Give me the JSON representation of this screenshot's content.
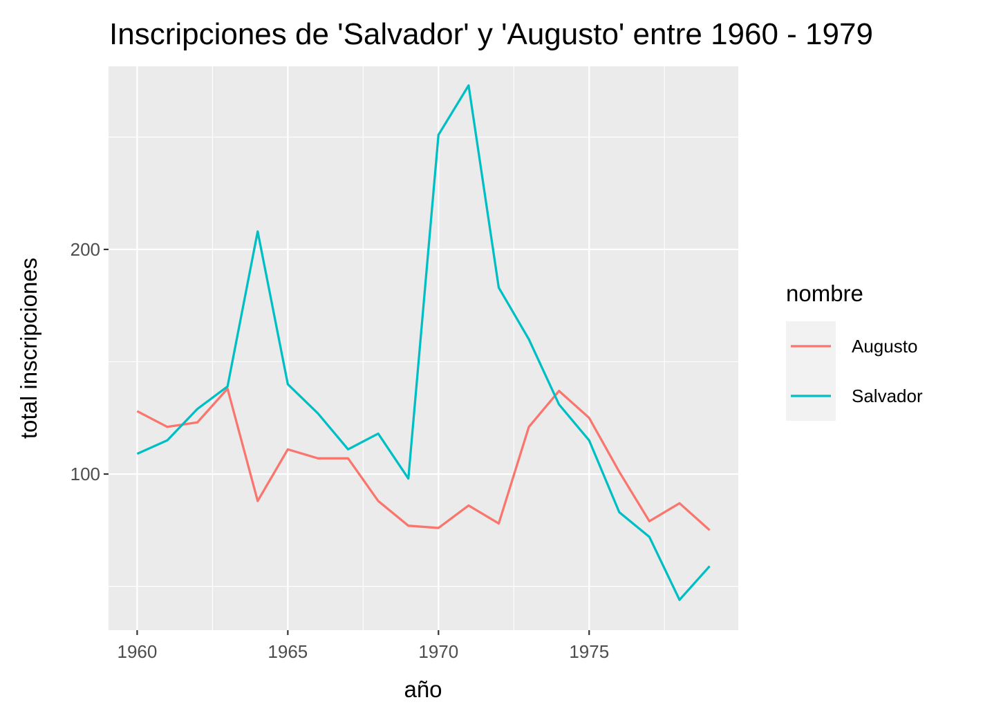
{
  "chart_data": {
    "type": "line",
    "title": "Inscripciones de 'Salvador' y 'Augusto' entre 1960 - 1979",
    "xlabel": "año",
    "ylabel": "total inscripciones",
    "x": [
      1960,
      1961,
      1962,
      1963,
      1964,
      1965,
      1966,
      1967,
      1968,
      1969,
      1970,
      1971,
      1972,
      1973,
      1974,
      1975,
      1976,
      1977,
      1978,
      1979
    ],
    "x_ticks": [
      "1960",
      "1965",
      "1970",
      "1975"
    ],
    "y_ticks": [
      "100",
      "200"
    ],
    "xlim": [
      1959.05,
      1979.95
    ],
    "ylim": [
      30.5,
      281.5
    ],
    "grid": true,
    "legend": {
      "title": "nombre",
      "placement": "right"
    },
    "series": [
      {
        "name": "Augusto",
        "color": "#F8766D",
        "values": [
          128,
          121,
          123,
          138,
          88,
          111,
          107,
          107,
          88,
          77,
          76,
          86,
          78,
          121,
          137,
          125,
          101,
          79,
          87,
          75
        ]
      },
      {
        "name": "Salvador",
        "color": "#00BFC4",
        "values": [
          109,
          115,
          129,
          139,
          208,
          140,
          127,
          111,
          118,
          98,
          251,
          273,
          183,
          160,
          131,
          115,
          83,
          72,
          44,
          59
        ]
      }
    ]
  }
}
